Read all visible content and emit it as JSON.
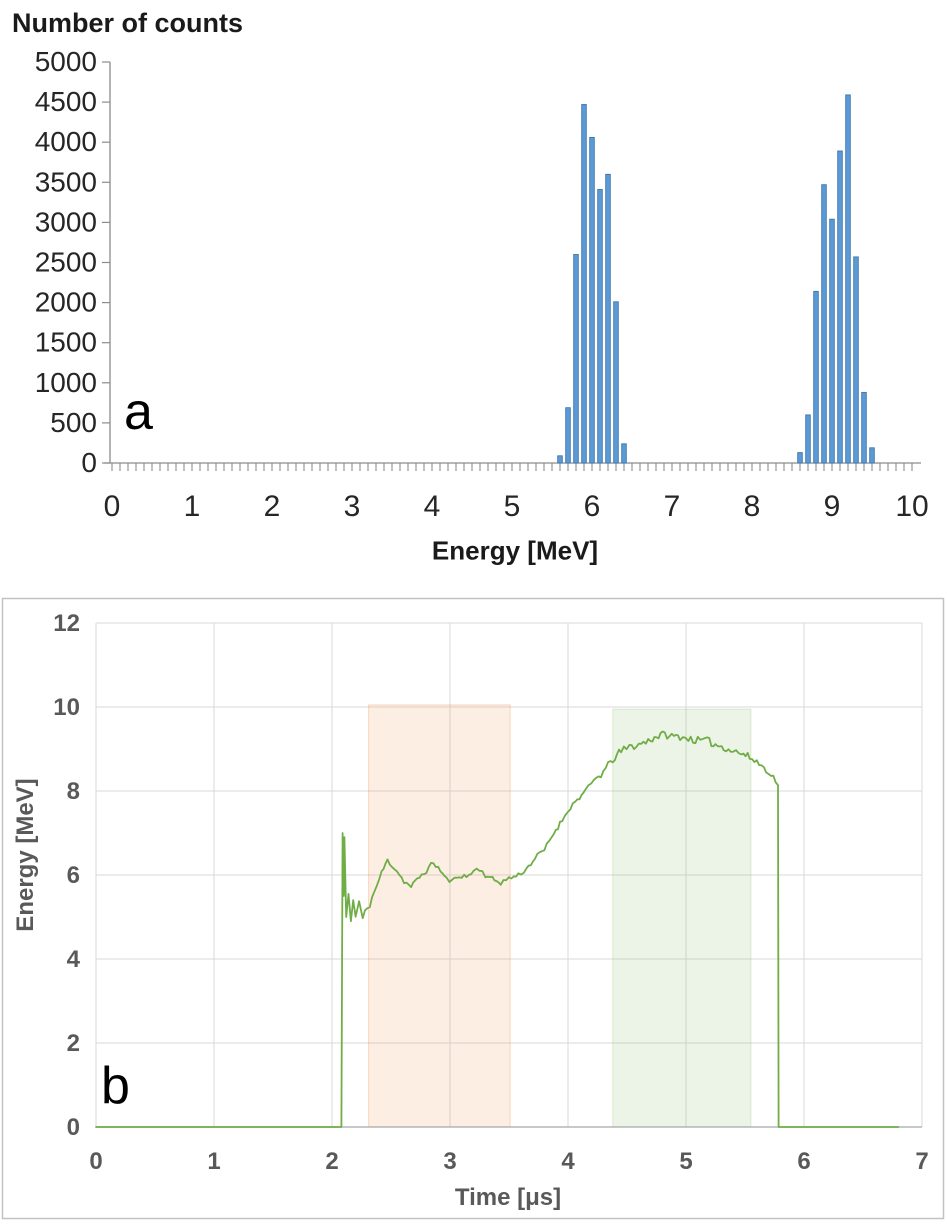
{
  "panel_a": {
    "panel_label": "a",
    "title": "Number of counts",
    "xlabel": "Energy [MeV]"
  },
  "panel_b": {
    "panel_label": "b",
    "xlabel": "Time [μs]",
    "ylabel": "Energy [MeV]"
  },
  "chart_data": [
    {
      "type": "bar",
      "panel": "a",
      "title": "Number of counts",
      "xlabel": "Energy [MeV]",
      "xlim": [
        0,
        10
      ],
      "ylim": [
        0,
        5000
      ],
      "x_ticks": [
        0,
        1,
        2,
        3,
        4,
        5,
        6,
        7,
        8,
        9,
        10
      ],
      "x_minor_tick_step": 0.1,
      "y_ticks": [
        0,
        500,
        1000,
        1500,
        2000,
        2500,
        3000,
        3500,
        4000,
        4500,
        5000
      ],
      "grid": false,
      "legend": "none",
      "bar_color": "#5b9bd5",
      "bar_edge_color": "#3f76ad",
      "bin_width": 0.1,
      "series": [
        {
          "name": "peak near 6 MeV",
          "x": [
            5.6,
            5.7,
            5.8,
            5.9,
            6.0,
            6.1,
            6.2,
            6.3,
            6.4
          ],
          "counts": [
            90,
            690,
            2600,
            4470,
            4060,
            3410,
            3600,
            2010,
            240
          ]
        },
        {
          "name": "peak near 9 MeV",
          "x": [
            8.6,
            8.7,
            8.8,
            8.9,
            9.0,
            9.1,
            9.2,
            9.3,
            9.4,
            9.5
          ],
          "counts": [
            130,
            600,
            2140,
            3470,
            3040,
            3890,
            4590,
            2570,
            880,
            190
          ]
        }
      ]
    },
    {
      "type": "line",
      "panel": "b",
      "xlabel": "Time [μs]",
      "ylabel": "Energy [MeV]",
      "xlim": [
        0,
        7
      ],
      "ylim": [
        0,
        12
      ],
      "x_ticks": [
        0,
        1,
        2,
        3,
        4,
        5,
        6,
        7
      ],
      "y_ticks": [
        0,
        2,
        4,
        6,
        8,
        10,
        12
      ],
      "grid": true,
      "legend": "none",
      "line_color": "#70ad47",
      "points": [
        [
          0,
          0
        ],
        [
          2.08,
          0
        ],
        [
          2.09,
          7.0
        ],
        [
          2.1,
          5.5
        ],
        [
          2.105,
          6.9
        ],
        [
          2.12,
          5.0
        ],
        [
          2.14,
          5.55
        ],
        [
          2.16,
          4.9
        ],
        [
          2.18,
          5.4
        ],
        [
          2.2,
          5.0
        ],
        [
          2.23,
          5.35
        ],
        [
          2.26,
          4.95
        ],
        [
          2.3,
          5.2
        ],
        [
          2.36,
          5.6
        ],
        [
          2.42,
          6.05
        ],
        [
          2.47,
          6.35
        ],
        [
          2.55,
          6.1
        ],
        [
          2.61,
          5.85
        ],
        [
          2.67,
          5.72
        ],
        [
          2.74,
          5.95
        ],
        [
          2.8,
          6.1
        ],
        [
          2.86,
          6.3
        ],
        [
          2.92,
          6.1
        ],
        [
          2.97,
          5.9
        ],
        [
          3.02,
          5.85
        ],
        [
          3.08,
          6.0
        ],
        [
          3.14,
          5.95
        ],
        [
          3.2,
          6.1
        ],
        [
          3.25,
          6.15
        ],
        [
          3.3,
          6.0
        ],
        [
          3.36,
          5.9
        ],
        [
          3.43,
          5.82
        ],
        [
          3.5,
          5.92
        ],
        [
          3.58,
          6.0
        ],
        [
          3.65,
          6.15
        ],
        [
          3.72,
          6.4
        ],
        [
          3.8,
          6.6
        ],
        [
          3.88,
          7.0
        ],
        [
          3.95,
          7.3
        ],
        [
          4.0,
          7.55
        ],
        [
          4.08,
          7.8
        ],
        [
          4.15,
          8.0
        ],
        [
          4.22,
          8.25
        ],
        [
          4.3,
          8.45
        ],
        [
          4.38,
          8.75
        ],
        [
          4.45,
          8.95
        ],
        [
          4.52,
          9.05
        ],
        [
          4.6,
          9.1
        ],
        [
          4.68,
          9.2
        ],
        [
          4.75,
          9.3
        ],
        [
          4.82,
          9.35
        ],
        [
          4.88,
          9.3
        ],
        [
          4.95,
          9.3
        ],
        [
          5.02,
          9.25
        ],
        [
          5.1,
          9.2
        ],
        [
          5.18,
          9.2
        ],
        [
          5.25,
          9.1
        ],
        [
          5.32,
          9.05
        ],
        [
          5.4,
          8.95
        ],
        [
          5.47,
          8.9
        ],
        [
          5.54,
          8.8
        ],
        [
          5.6,
          8.7
        ],
        [
          5.66,
          8.55
        ],
        [
          5.72,
          8.4
        ],
        [
          5.76,
          8.25
        ],
        [
          5.78,
          8.1
        ],
        [
          5.785,
          0
        ],
        [
          6.8,
          0
        ]
      ],
      "regions": [
        {
          "name": "highlight window 1 (orange)",
          "x_start": 2.31,
          "x_end": 3.51,
          "y_start": 0,
          "y_end": 10.05,
          "fill": "rgba(237,125,49,0.13)",
          "edge": "rgba(237,125,49,0.28)"
        },
        {
          "name": "highlight window 2 (green)",
          "x_start": 4.38,
          "x_end": 5.55,
          "y_start": 0,
          "y_end": 9.95,
          "fill": "rgba(112,173,71,0.13)",
          "edge": "rgba(112,173,71,0.22)"
        }
      ]
    }
  ]
}
